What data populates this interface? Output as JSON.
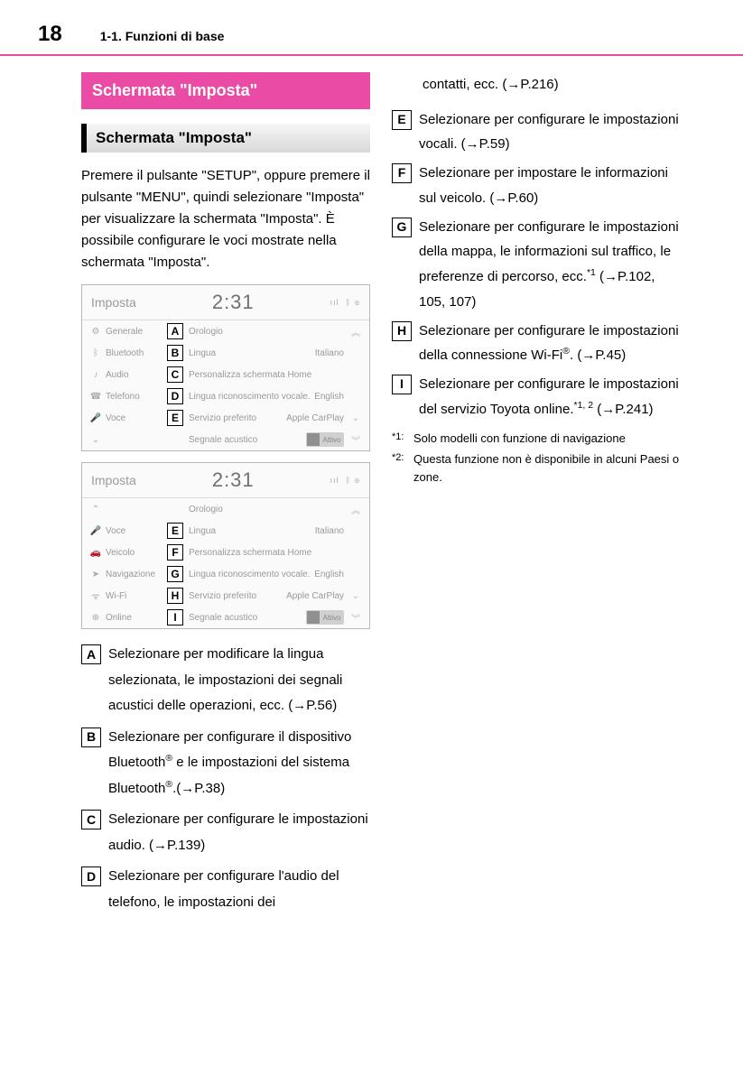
{
  "header": {
    "page_number": "18",
    "section": "1-1. Funzioni di base"
  },
  "heading_main": "Schermata \"Imposta\"",
  "heading_sub": "Schermata \"Imposta\"",
  "intro": "Premere il pulsante \"SETUP\", oppure premere il pulsante \"MENU\", quindi selezionare \"Imposta\" per visualizzare la schermata \"Imposta\". È possibile configurare le voci mostrate nella schermata \"Imposta\".",
  "panel1": {
    "title": "Imposta",
    "clock": "2:31",
    "rows": [
      {
        "icon": "⚙",
        "menu": "Generale",
        "marker": "A",
        "label": "Orologio",
        "value": "",
        "chev": "up"
      },
      {
        "icon": "ᛒ",
        "menu": "Bluetooth",
        "marker": "B",
        "label": "Lingua",
        "value": "Italiano",
        "chev": ""
      },
      {
        "icon": "♪",
        "menu": "Audio",
        "marker": "C",
        "label": "Personalizza schermata Home",
        "value": "",
        "chev": ""
      },
      {
        "icon": "☎",
        "menu": "Telefono",
        "marker": "D",
        "label": "Lingua riconoscimento vocale.",
        "value": "English",
        "chev": ""
      },
      {
        "icon": "🎤",
        "menu": "Voce",
        "marker": "E",
        "label": "Servizio preferito",
        "value": "Apple CarPlay",
        "chev": "v"
      },
      {
        "icon": "⌄",
        "menu": "",
        "marker": "",
        "label": "Segnale acustico",
        "value": "Attivo",
        "toggle": true,
        "chev": "down"
      }
    ]
  },
  "panel2": {
    "title": "Imposta",
    "clock": "2:31",
    "rows": [
      {
        "icon": "⌃",
        "menu": "",
        "marker": "",
        "label": "Orologio",
        "value": "",
        "chev": "up"
      },
      {
        "icon": "🎤",
        "menu": "Voce",
        "marker": "E",
        "label": "Lingua",
        "value": "Italiano",
        "chev": ""
      },
      {
        "icon": "🚗",
        "menu": "Veicolo",
        "marker": "F",
        "label": "Personalizza schermata Home",
        "value": "",
        "chev": ""
      },
      {
        "icon": "➤",
        "menu": "Navigazione",
        "marker": "G",
        "label": "Lingua riconoscimento vocale.",
        "value": "English",
        "chev": ""
      },
      {
        "icon": "ᯤ",
        "menu": "Wi-Fi",
        "marker": "H",
        "label": "Servizio preferito",
        "value": "Apple CarPlay",
        "chev": "v"
      },
      {
        "icon": "⊕",
        "menu": "Online",
        "marker": "I",
        "label": "Segnale acustico",
        "value": "Attivo",
        "toggle": true,
        "chev": "down"
      }
    ]
  },
  "callouts_left": [
    {
      "m": "A",
      "html": "Selezionare per modificare la lingua selezionata, le impostazioni dei segnali acustici delle operazioni, ecc. (→P.56)"
    },
    {
      "m": "B",
      "html": "Selezionare per configurare il dispositivo Bluetooth<sup>®</sup> e le impostazioni del sistema Bluetooth<sup>®</sup>.(→P.38)"
    },
    {
      "m": "C",
      "html": "Selezionare per configurare le impostazioni audio. (→P.139)"
    },
    {
      "m": "D",
      "html": "Selezionare per configurare l'audio del telefono, le impostazioni dei"
    }
  ],
  "callout_d_cont": "contatti, ecc. (→P.216)",
  "callouts_right": [
    {
      "m": "E",
      "html": "Selezionare per configurare le impostazioni vocali. (→P.59)"
    },
    {
      "m": "F",
      "html": "Selezionare per impostare le informazioni sul veicolo. (→P.60)"
    },
    {
      "m": "G",
      "html": "Selezionare per configurare le impostazioni della mappa, le informazioni sul traffico, le preferenze di percorso, ecc.<sup>*1</sup> (→P.102, 105, 107)"
    },
    {
      "m": "H",
      "html": "Selezionare per configurare le impostazioni della connessione Wi-Fi<sup>®</sup>. (→P.45)"
    },
    {
      "m": "I",
      "html": "Selezionare per configurare le impostazioni del servizio Toyota online.<sup>*1, 2</sup> (→P.241)"
    }
  ],
  "footnotes": [
    {
      "mark": "*1:",
      "text": "Solo modelli con funzione di navigazione"
    },
    {
      "mark": "*2:",
      "text": "Questa funzione non è disponibile in alcuni Paesi o zone."
    }
  ]
}
